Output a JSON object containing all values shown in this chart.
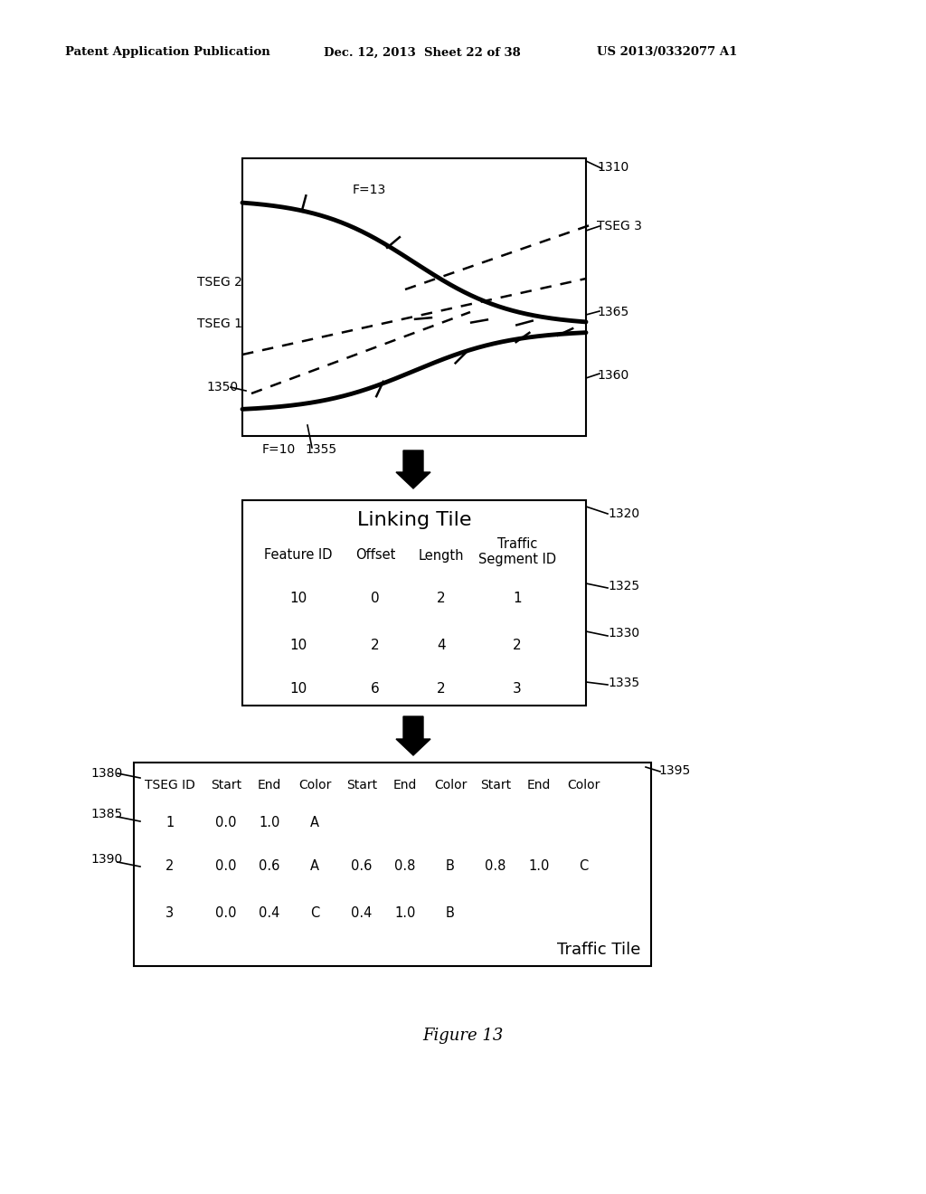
{
  "header_left": "Patent Application Publication",
  "header_mid": "Dec. 12, 2013  Sheet 22 of 38",
  "header_right": "US 2013/0332077 A1",
  "figure_caption": "Figure 13",
  "diagram_label_1310": "1310",
  "diagram_label_1350": "1350",
  "diagram_label_1360": "1360",
  "diagram_label_1365": "1365",
  "diagram_label_1355": "1355",
  "diagram_label_F13": "F=13",
  "diagram_label_F10": "F=10",
  "diagram_label_TSEG1": "TSEG 1",
  "diagram_label_TSEG2": "TSEG 2",
  "diagram_label_TSEG3": "TSEG 3",
  "linking_tile_title": "Linking Tile",
  "linking_tile_headers": [
    "Feature ID",
    "Offset",
    "Length",
    "Traffic\nSegment ID"
  ],
  "linking_tile_rows": [
    [
      "10",
      "0",
      "2",
      "1"
    ],
    [
      "10",
      "2",
      "4",
      "2"
    ],
    [
      "10",
      "6",
      "2",
      "3"
    ]
  ],
  "linking_label_1320": "1320",
  "linking_label_1325": "1325",
  "linking_label_1330": "1330",
  "linking_label_1335": "1335",
  "traffic_tile_headers": [
    "TSEG ID",
    "Start",
    "End",
    "Color",
    "Start",
    "End",
    "Color",
    "Start",
    "End",
    "Color"
  ],
  "traffic_tile_rows": [
    [
      "1",
      "0.0",
      "1.0",
      "A",
      "",
      "",
      "",
      "",
      "",
      ""
    ],
    [
      "2",
      "0.0",
      "0.6",
      "A",
      "0.6",
      "0.8",
      "B",
      "0.8",
      "1.0",
      "C"
    ],
    [
      "3",
      "0.0",
      "0.4",
      "C",
      "0.4",
      "1.0",
      "B",
      "",
      "",
      ""
    ]
  ],
  "traffic_tile_label": "Traffic Tile",
  "traffic_label_1380": "1380",
  "traffic_label_1385": "1385",
  "traffic_label_1390": "1390",
  "traffic_label_1395": "1395",
  "bg_color": "#ffffff",
  "text_color": "#000000"
}
